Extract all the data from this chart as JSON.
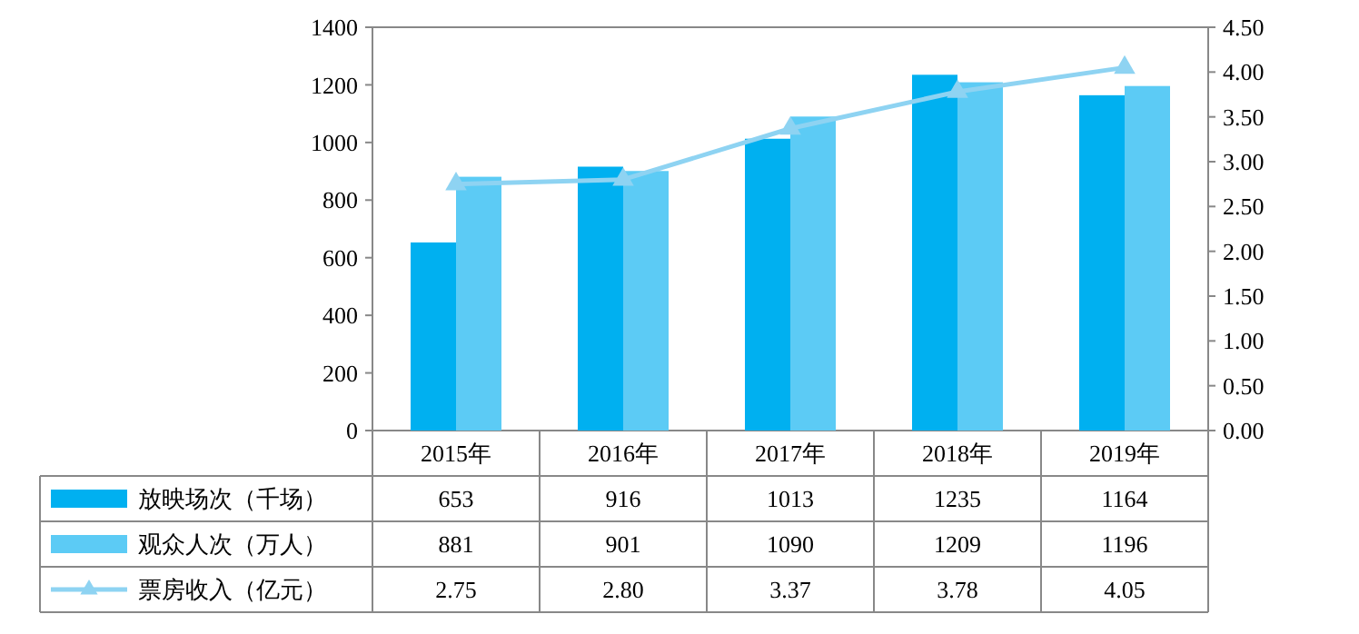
{
  "chart_data": {
    "type": "bar",
    "categories": [
      "2015年",
      "2016年",
      "2017年",
      "2018年",
      "2019年"
    ],
    "series": [
      {
        "name": "放映场次（千场）",
        "color": "#00b0f0",
        "values": [
          653,
          916,
          1013,
          1235,
          1164
        ],
        "value_labels": [
          "653",
          "916",
          "1013",
          "1235",
          "1164"
        ]
      },
      {
        "name": "观众人次（万人）",
        "color": "#5ccbf5",
        "values": [
          881,
          901,
          1090,
          1209,
          1196
        ],
        "value_labels": [
          "881",
          "901",
          "1090",
          "1209",
          "1196"
        ]
      },
      {
        "name": "票房收入（亿元）",
        "type": "line",
        "axis": "y2",
        "marker": "triangle",
        "color": "#8ed3f2",
        "values": [
          2.75,
          2.8,
          3.37,
          3.78,
          4.05
        ],
        "value_labels": [
          "2.75",
          "2.80",
          "3.37",
          "3.78",
          "4.05"
        ]
      }
    ],
    "ylim": [
      0,
      1400
    ],
    "yticks": [
      0,
      200,
      400,
      600,
      800,
      1000,
      1200,
      1400
    ],
    "y2lim": [
      0,
      4.5
    ],
    "y2ticks": [
      {
        "value": 0,
        "label": "0.00"
      },
      {
        "value": 0.5,
        "label": "0.50"
      },
      {
        "value": 1,
        "label": "1.00"
      },
      {
        "value": 1.5,
        "label": "1.50"
      },
      {
        "value": 2,
        "label": "2.00"
      },
      {
        "value": 2.5,
        "label": "2.50"
      },
      {
        "value": 3,
        "label": "3.00"
      },
      {
        "value": 3.5,
        "label": "3.50"
      },
      {
        "value": 4,
        "label": "4.00"
      },
      {
        "value": 4.5,
        "label": "4.50"
      }
    ],
    "legend": "bottom left"
  }
}
